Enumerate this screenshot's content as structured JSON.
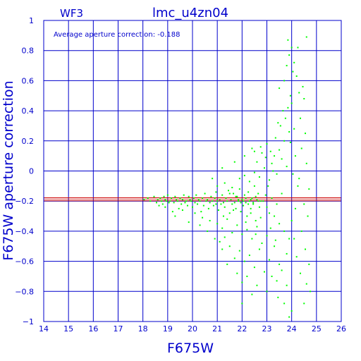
{
  "chart_data": {
    "type": "scatter",
    "title": "lmc_u4zn04",
    "subtitle": "WF3",
    "annotation": "Average aperture correction: -0.188",
    "xlabel": "F675W",
    "ylabel": "F675W aperture correction",
    "xlim": [
      14,
      26
    ],
    "ylim": [
      -1,
      1
    ],
    "xticks": [
      14,
      15,
      16,
      17,
      18,
      19,
      20,
      21,
      22,
      23,
      24,
      25,
      26
    ],
    "yticks": [
      -1,
      -0.8,
      -0.6,
      -0.4,
      -0.2,
      0,
      0.2,
      0.4,
      0.6,
      0.8,
      1
    ],
    "ytick_labels": [
      "−1",
      "−0.8",
      "−0.6",
      "−0.4",
      "−0.2",
      "0",
      "0.2",
      "0.4",
      "0.6",
      "0.8",
      "1"
    ],
    "grid": true,
    "average": -0.188,
    "average_band": [
      -0.198,
      -0.178
    ],
    "colors": {
      "axes": "#0000cc",
      "points": "#00ff00",
      "average_line": "#cc0000",
      "background": "#ffffff"
    },
    "series": [
      {
        "points": [
          [
            18.05,
            -0.19
          ],
          [
            18.2,
            -0.18
          ],
          [
            18.3,
            -0.2
          ],
          [
            18.45,
            -0.17
          ],
          [
            18.55,
            -0.21
          ],
          [
            18.6,
            -0.19
          ],
          [
            18.7,
            -0.18
          ],
          [
            18.75,
            -0.2
          ],
          [
            18.8,
            -0.22
          ],
          [
            18.85,
            -0.17
          ],
          [
            18.9,
            -0.19
          ],
          [
            18.95,
            -0.2
          ],
          [
            19.0,
            -0.16
          ],
          [
            19.05,
            -0.21
          ],
          [
            18.65,
            -0.23
          ],
          [
            18.9,
            -0.24
          ],
          [
            19.1,
            -0.2
          ],
          [
            19.15,
            -0.18
          ],
          [
            19.2,
            -0.27
          ],
          [
            19.25,
            -0.21
          ],
          [
            19.3,
            -0.17
          ],
          [
            19.35,
            -0.19
          ],
          [
            19.4,
            -0.2
          ],
          [
            19.45,
            -0.25
          ],
          [
            19.5,
            -0.18
          ],
          [
            19.55,
            -0.22
          ],
          [
            19.6,
            -0.19
          ],
          [
            19.65,
            -0.16
          ],
          [
            19.7,
            -0.21
          ],
          [
            19.75,
            -0.2
          ],
          [
            19.8,
            -0.23
          ],
          [
            19.85,
            -0.17
          ],
          [
            19.9,
            -0.19
          ],
          [
            19.95,
            -0.2
          ],
          [
            20.0,
            -0.24
          ],
          [
            20.05,
            -0.18
          ],
          [
            20.1,
            -0.21
          ],
          [
            20.15,
            -0.16
          ],
          [
            20.2,
            -0.22
          ],
          [
            20.25,
            -0.19
          ],
          [
            20.3,
            -0.2
          ],
          [
            20.35,
            -0.27
          ],
          [
            20.4,
            -0.18
          ],
          [
            20.45,
            -0.23
          ],
          [
            20.5,
            -0.15
          ],
          [
            20.55,
            -0.2
          ],
          [
            20.6,
            -0.19
          ],
          [
            20.65,
            -0.25
          ],
          [
            20.7,
            -0.21
          ],
          [
            20.75,
            -0.17
          ],
          [
            20.8,
            -0.2
          ],
          [
            20.85,
            -0.23
          ],
          [
            20.9,
            -0.18
          ],
          [
            20.95,
            -0.14
          ],
          [
            21.0,
            -0.2
          ],
          [
            21.05,
            -0.26
          ],
          [
            21.1,
            -0.19
          ],
          [
            21.15,
            -0.22
          ],
          [
            21.2,
            -0.16
          ],
          [
            21.25,
            -0.21
          ],
          [
            21.3,
            -0.24
          ],
          [
            21.35,
            -0.18
          ],
          [
            21.4,
            -0.2
          ],
          [
            21.45,
            -0.13
          ],
          [
            21.5,
            -0.28
          ],
          [
            21.55,
            -0.19
          ],
          [
            21.6,
            -0.22
          ],
          [
            21.65,
            -0.15
          ],
          [
            21.7,
            -0.21
          ],
          [
            21.75,
            -0.25
          ],
          [
            21.8,
            -0.17
          ],
          [
            21.85,
            -0.2
          ],
          [
            21.9,
            -0.12
          ],
          [
            21.95,
            -0.27
          ],
          [
            22.0,
            -0.19
          ],
          [
            22.05,
            -0.23
          ],
          [
            22.1,
            -0.16
          ],
          [
            22.15,
            -0.21
          ],
          [
            22.2,
            -0.3
          ],
          [
            22.25,
            -0.14
          ],
          [
            22.3,
            -0.2
          ],
          [
            22.35,
            -0.25
          ],
          [
            22.4,
            -0.18
          ],
          [
            22.45,
            -0.22
          ],
          [
            22.5,
            -0.1
          ],
          [
            22.55,
            -0.33
          ],
          [
            22.6,
            -0.19
          ],
          [
            22.65,
            -0.15
          ],
          [
            22.7,
            -0.24
          ],
          [
            22.75,
            -0.2
          ],
          [
            19.3,
            -0.3
          ],
          [
            19.6,
            -0.26
          ],
          [
            20.1,
            -0.28
          ],
          [
            20.4,
            -0.31
          ],
          [
            20.7,
            -0.33
          ],
          [
            21.0,
            -0.35
          ],
          [
            21.2,
            -0.38
          ],
          [
            21.4,
            -0.32
          ],
          [
            21.6,
            -0.41
          ],
          [
            21.8,
            -0.36
          ],
          [
            22.0,
            -0.42
          ],
          [
            22.2,
            -0.39
          ],
          [
            22.4,
            -0.45
          ],
          [
            22.6,
            -0.37
          ],
          [
            22.8,
            -0.48
          ],
          [
            23.0,
            -0.43
          ],
          [
            21.1,
            -0.47
          ],
          [
            21.5,
            -0.5
          ],
          [
            21.9,
            -0.53
          ],
          [
            22.3,
            -0.56
          ],
          [
            22.7,
            -0.52
          ],
          [
            23.1,
            -0.59
          ],
          [
            23.3,
            -0.5
          ],
          [
            23.5,
            -0.62
          ],
          [
            21.3,
            -0.44
          ],
          [
            21.7,
            -0.58
          ],
          [
            22.1,
            -0.6
          ],
          [
            22.5,
            -0.64
          ],
          [
            22.9,
            -0.67
          ],
          [
            23.2,
            -0.7
          ],
          [
            23.4,
            -0.73
          ],
          [
            23.6,
            -0.66
          ],
          [
            23.8,
            -0.76
          ],
          [
            22.2,
            -0.7
          ],
          [
            22.6,
            -0.76
          ],
          [
            23.0,
            -0.8
          ],
          [
            23.45,
            -0.84
          ],
          [
            23.7,
            -0.88
          ],
          [
            24.0,
            -0.93
          ],
          [
            23.9,
            -0.97
          ],
          [
            21.0,
            -0.1
          ],
          [
            21.3,
            -0.08
          ],
          [
            21.6,
            -0.11
          ],
          [
            21.9,
            -0.05
          ],
          [
            22.1,
            -0.03
          ],
          [
            22.3,
            -0.07
          ],
          [
            22.5,
            -0.01
          ],
          [
            22.7,
            -0.04
          ],
          [
            22.9,
            0.02
          ],
          [
            23.1,
            -0.06
          ],
          [
            23.2,
            0.05
          ],
          [
            23.3,
            0.1
          ],
          [
            23.4,
            -0.02
          ],
          [
            23.5,
            0.14
          ],
          [
            23.6,
            0.08
          ],
          [
            23.7,
            0.2
          ],
          [
            23.8,
            0.03
          ],
          [
            23.9,
            0.26
          ],
          [
            22.6,
            0.06
          ],
          [
            22.8,
            0.12
          ],
          [
            22.4,
            0.15
          ],
          [
            23.0,
            0.18
          ],
          [
            23.35,
            0.22
          ],
          [
            23.55,
            0.3
          ],
          [
            23.75,
            0.35
          ],
          [
            23.85,
            0.42
          ],
          [
            23.95,
            0.5
          ],
          [
            24.0,
            0.45
          ],
          [
            23.65,
            0.4
          ],
          [
            23.45,
            0.32
          ],
          [
            23.5,
            0.55
          ],
          [
            23.7,
            0.6
          ],
          [
            23.8,
            0.7
          ],
          [
            23.9,
            0.77
          ],
          [
            24.0,
            0.82
          ],
          [
            24.1,
            0.72
          ],
          [
            24.05,
            0.66
          ],
          [
            23.85,
            0.87
          ],
          [
            24.25,
            0.82
          ],
          [
            24.6,
            0.89
          ],
          [
            24.2,
            0.63
          ],
          [
            24.3,
            0.52
          ],
          [
            24.45,
            0.56
          ],
          [
            24.5,
            0.48
          ],
          [
            24.35,
            0.35
          ],
          [
            24.55,
            0.25
          ],
          [
            24.4,
            0.15
          ],
          [
            24.6,
            0.05
          ],
          [
            24.3,
            -0.05
          ],
          [
            24.7,
            -0.12
          ],
          [
            24.5,
            -0.22
          ],
          [
            24.65,
            -0.3
          ],
          [
            24.4,
            -0.4
          ],
          [
            24.55,
            -0.52
          ],
          [
            24.7,
            -0.62
          ],
          [
            24.6,
            -0.75
          ],
          [
            24.75,
            -0.8
          ],
          [
            24.5,
            -0.88
          ],
          [
            24.35,
            -0.68
          ],
          [
            24.2,
            -0.57
          ],
          [
            24.1,
            -0.45
          ],
          [
            24.0,
            -0.33
          ],
          [
            24.15,
            -0.25
          ],
          [
            24.25,
            -0.1
          ],
          [
            24.05,
            -0.02
          ],
          [
            24.15,
            0.1
          ],
          [
            24.1,
            0.28
          ],
          [
            23.95,
            0.19
          ],
          [
            23.6,
            -0.15
          ],
          [
            23.4,
            -0.22
          ],
          [
            23.2,
            -0.18
          ],
          [
            23.0,
            -0.24
          ],
          [
            22.85,
            -0.2
          ],
          [
            22.95,
            -0.16
          ],
          [
            23.1,
            -0.28
          ],
          [
            23.3,
            -0.3
          ],
          [
            23.5,
            -0.35
          ],
          [
            23.7,
            -0.4
          ],
          [
            23.9,
            -0.45
          ],
          [
            23.8,
            -0.55
          ],
          [
            22.05,
            -0.2
          ],
          [
            22.15,
            -0.18
          ],
          [
            22.25,
            -0.22
          ],
          [
            21.95,
            -0.21
          ],
          [
            21.85,
            -0.19
          ],
          [
            21.75,
            -0.17
          ],
          [
            22.35,
            -0.19
          ],
          [
            22.45,
            -0.21
          ],
          [
            22.55,
            -0.17
          ],
          [
            22.65,
            -0.2
          ],
          [
            20.6,
            -0.4
          ],
          [
            20.9,
            -0.45
          ],
          [
            21.2,
            -0.52
          ],
          [
            20.3,
            -0.36
          ],
          [
            19.85,
            -0.34
          ],
          [
            21.4,
            -0.62
          ],
          [
            21.8,
            -0.68
          ],
          [
            22.0,
            -0.74
          ],
          [
            22.4,
            -0.82
          ],
          [
            22.0,
            -0.88
          ],
          [
            20.8,
            -0.05
          ],
          [
            21.2,
            0.02
          ],
          [
            21.7,
            0.06
          ],
          [
            22.1,
            0.1
          ],
          [
            22.5,
            0.13
          ],
          [
            22.75,
            0.16
          ],
          [
            22.95,
            0.09
          ],
          [
            23.15,
            0.13
          ],
          [
            23.25,
            0.0
          ],
          [
            23.05,
            -0.1
          ],
          [
            21.5,
            -0.15
          ],
          [
            20.95,
            -0.22
          ],
          [
            21.65,
            -0.26
          ],
          [
            21.25,
            -0.3
          ],
          [
            22.15,
            -0.34
          ],
          [
            22.35,
            -0.28
          ],
          [
            22.55,
            -0.42
          ],
          [
            22.75,
            -0.31
          ],
          [
            23.15,
            -0.38
          ],
          [
            23.35,
            -0.46
          ]
        ]
      }
    ]
  }
}
